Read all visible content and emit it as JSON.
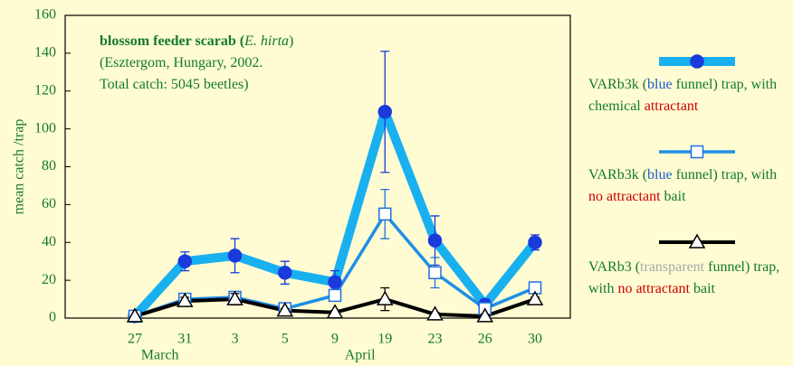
{
  "chart_data": {
    "type": "line",
    "annotation": [
      [
        {
          "text": "blossom feeder scarab",
          "style": "bold"
        },
        {
          "text": " (",
          "style": "bold"
        },
        {
          "text": "E. hirta",
          "style": "italic"
        },
        {
          "text": ")",
          "style": "normal"
        }
      ],
      [
        {
          "text": "(Esztergom, Hungary, 2002.",
          "style": "normal"
        }
      ],
      [
        {
          "text": "Total catch: 5045 beetles)",
          "style": "normal"
        }
      ]
    ],
    "ylabel": "mean catch /trap",
    "categories": [
      "27",
      "31",
      "3",
      "5",
      "9",
      "19",
      "23",
      "26",
      "30"
    ],
    "x_groups": [
      {
        "label": "March",
        "at": 0.5
      },
      {
        "label": "April",
        "at": 4.5
      }
    ],
    "ylim": [
      0,
      160
    ],
    "yticks": [
      0,
      20,
      40,
      60,
      80,
      100,
      120,
      140,
      160
    ],
    "series": [
      {
        "name_parts": [
          {
            "text": "VARb3k (",
            "color": "#137a2e"
          },
          {
            "text": "blue",
            "color": "#1a5fd0"
          },
          {
            "text": " funnel) trap, with chemical ",
            "color": "#137a2e"
          },
          {
            "text": "attractant",
            "color": "#cc0000"
          }
        ],
        "color": "#19b0f0",
        "marker_color": "#1a3adc",
        "marker": "circle",
        "line_width": 10,
        "values": [
          1,
          30,
          33,
          24,
          19,
          109,
          41,
          7,
          40
        ],
        "errors": [
          0,
          5,
          9,
          6,
          6,
          32,
          13,
          3,
          4
        ]
      },
      {
        "name_parts": [
          {
            "text": "VARb3k (",
            "color": "#137a2e"
          },
          {
            "text": "blue",
            "color": "#1a5fd0"
          },
          {
            "text": " funnel) trap, with ",
            "color": "#137a2e"
          },
          {
            "text": "no attractant",
            "color": "#cc0000"
          },
          {
            "text": " bait",
            "color": "#137a2e"
          }
        ],
        "color": "#1f8fe6",
        "marker_color": "#1f6fe0",
        "marker": "square",
        "line_width": 3.5,
        "values": [
          1,
          10,
          11,
          5,
          12,
          55,
          24,
          5,
          16
        ],
        "errors": [
          0,
          3,
          2,
          1,
          1,
          13,
          8,
          2,
          2
        ]
      },
      {
        "name_parts": [
          {
            "text": "VARb3 (",
            "color": "#137a2e"
          },
          {
            "text": "transparent",
            "color": "#a8a8a8"
          },
          {
            "text": " funnel) trap, with ",
            "color": "#137a2e"
          },
          {
            "text": "no attractant",
            "color": "#cc0000"
          },
          {
            "text": " bait",
            "color": "#137a2e"
          }
        ],
        "color": "#000000",
        "marker_color": "#000000",
        "marker": "triangle",
        "line_width": 4,
        "values": [
          1,
          9,
          10,
          4,
          3,
          10,
          2,
          1,
          10
        ],
        "errors": [
          0,
          2,
          3,
          1,
          1,
          6,
          1,
          1,
          1
        ]
      }
    ]
  }
}
